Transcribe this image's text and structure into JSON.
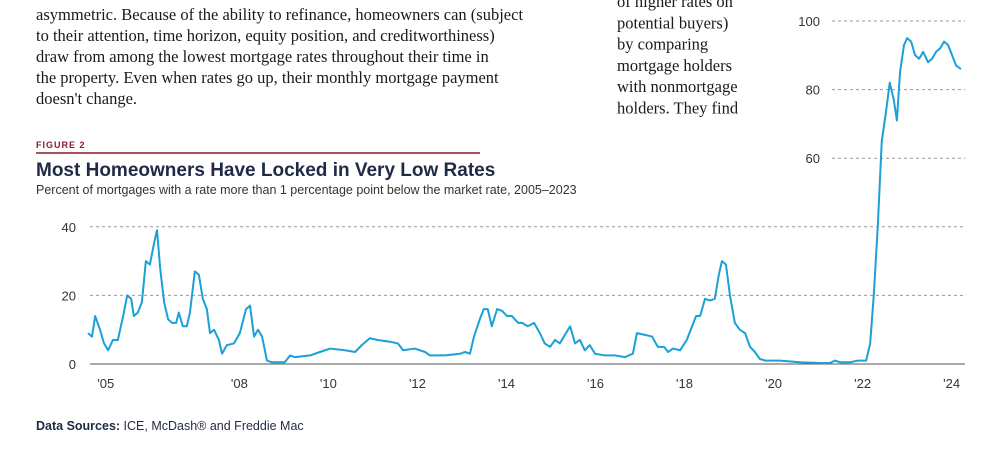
{
  "document": {
    "left_text": [
      "asymmetric. Because of the ability to refinance, homeowners can (subject",
      "to their attention, time horizon, equity position, and creditworthiness)",
      "draw from among the lowest mortgage rates throughout their time in",
      "the property. Even when rates go up, their monthly mortgage payment",
      "doesn't change."
    ],
    "right_text": [
      "of higher rates on",
      "potential buyers)",
      "by comparing",
      "mortgage holders",
      "with nonmortgage",
      "holders. They find"
    ]
  },
  "chart_data": {
    "type": "line",
    "figure_label": "FIGURE 2",
    "title": "Most Homeowners Have Locked in Very Low Rates",
    "subtitle": "Percent of mortgages with a rate more than 1 percentage point below the market rate, 2005–2023",
    "source_label": "Data Sources:",
    "source": "ICE, McDash® and Freddie Mac",
    "color": "#1ba0d7",
    "xlim": [
      2004.6,
      2024.3
    ],
    "ylim": [
      0,
      100
    ],
    "grid": true,
    "xticks": [
      {
        "value": 2005,
        "label": "'05"
      },
      {
        "value": 2008,
        "label": "'08"
      },
      {
        "value": 2010,
        "label": "'10"
      },
      {
        "value": 2012,
        "label": "'12"
      },
      {
        "value": 2014,
        "label": "'14"
      },
      {
        "value": 2016,
        "label": "'16"
      },
      {
        "value": 2018,
        "label": "'18"
      },
      {
        "value": 2020,
        "label": "'20"
      },
      {
        "value": 2022,
        "label": "'22"
      },
      {
        "value": 2024,
        "label": "'24"
      }
    ],
    "yticks": [
      0,
      20,
      40,
      60,
      80,
      100
    ],
    "x": [
      2004.6,
      2004.69,
      2004.76,
      2004.87,
      2004.96,
      2005.05,
      2005.16,
      2005.27,
      2005.39,
      2005.48,
      2005.57,
      2005.63,
      2005.72,
      2005.81,
      2005.9,
      2005.99,
      2006.08,
      2006.15,
      2006.22,
      2006.31,
      2006.4,
      2006.49,
      2006.58,
      2006.64,
      2006.73,
      2006.82,
      2006.89,
      2007.0,
      2007.09,
      2007.18,
      2007.27,
      2007.34,
      2007.43,
      2007.54,
      2007.61,
      2007.72,
      2007.88,
      2008.01,
      2008.15,
      2008.24,
      2008.33,
      2008.42,
      2008.51,
      2008.62,
      2008.73,
      2009.02,
      2009.14,
      2009.25,
      2009.59,
      2009.81,
      2010.04,
      2010.37,
      2010.6,
      2010.75,
      2010.93,
      2011.11,
      2011.38,
      2011.56,
      2011.68,
      2011.94,
      2012.17,
      2012.28,
      2012.62,
      2012.96,
      2013.07,
      2013.18,
      2013.27,
      2013.4,
      2013.49,
      2013.58,
      2013.67,
      2013.79,
      2013.9,
      2014.01,
      2014.12,
      2014.26,
      2014.35,
      2014.48,
      2014.62,
      2014.75,
      2014.86,
      2014.98,
      2015.09,
      2015.2,
      2015.29,
      2015.43,
      2015.54,
      2015.65,
      2015.76,
      2015.87,
      2015.99,
      2016.21,
      2016.44,
      2016.66,
      2016.84,
      2016.93,
      2017.11,
      2017.27,
      2017.4,
      2017.54,
      2017.63,
      2017.74,
      2017.9,
      2018.05,
      2018.17,
      2018.26,
      2018.35,
      2018.46,
      2018.57,
      2018.68,
      2018.77,
      2018.84,
      2018.93,
      2019.02,
      2019.13,
      2019.24,
      2019.36,
      2019.47,
      2019.58,
      2019.69,
      2019.81,
      2020.14,
      2020.59,
      2021.04,
      2021.27,
      2021.38,
      2021.5,
      2021.72,
      2021.9,
      2022.08,
      2022.17,
      2022.25,
      2022.34,
      2022.43,
      2022.52,
      2022.61,
      2022.7,
      2022.77,
      2022.84,
      2022.93,
      2023.0,
      2023.09,
      2023.18,
      2023.27,
      2023.36,
      2023.47,
      2023.56,
      2023.65,
      2023.74,
      2023.83,
      2023.92,
      2024.01,
      2024.1,
      2024.21
    ],
    "values": [
      9,
      8,
      14,
      10,
      6,
      4,
      7,
      7,
      14,
      20,
      19,
      14,
      15,
      18,
      30,
      29,
      35,
      39,
      28,
      18,
      13,
      12,
      12,
      15,
      11,
      11,
      15,
      27,
      26,
      19,
      16,
      9,
      10,
      7,
      3,
      5.5,
      6,
      9,
      16,
      17,
      8,
      10,
      8,
      1,
      0.5,
      0.5,
      2.5,
      2,
      2.5,
      3.5,
      4.5,
      4,
      3.5,
      5.5,
      7.5,
      7,
      6.5,
      6,
      4,
      4.5,
      3.5,
      2.5,
      2.5,
      3,
      3.5,
      3,
      8,
      13,
      16,
      16,
      11,
      16,
      15.5,
      14,
      14,
      12,
      12,
      11,
      12,
      9,
      6,
      5,
      7,
      6,
      8,
      11,
      6,
      7,
      4,
      5.5,
      3,
      2.5,
      2.5,
      2,
      3,
      9,
      8.5,
      8,
      5,
      5,
      3.5,
      4.5,
      4,
      7,
      11,
      14,
      14,
      19,
      18.5,
      19,
      26,
      30,
      29,
      20,
      12,
      10,
      9,
      5,
      3.5,
      1.5,
      1,
      1,
      0.5,
      0.3,
      0.3,
      1,
      0.5,
      0.5,
      1,
      1,
      6,
      20,
      40,
      65,
      73,
      82,
      77,
      71,
      85,
      93,
      95,
      94,
      90,
      89,
      91,
      88,
      89,
      91,
      92,
      94,
      93,
      90,
      87,
      86
    ]
  }
}
